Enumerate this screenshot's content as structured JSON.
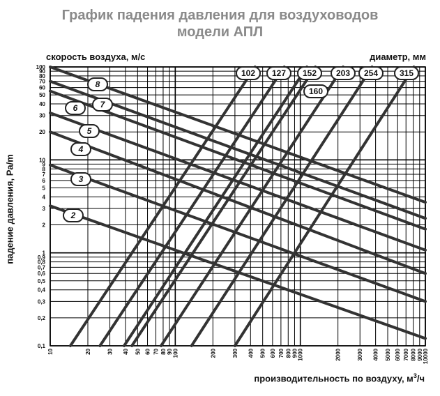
{
  "chart_data": {
    "type": "line",
    "title_lines": [
      "График падения давления для воздуховодов",
      "модели АПЛ"
    ],
    "xlabel": "производительность по воздуху, м",
    "xlabel_sup": "3",
    "xlabel_tail": "/ч",
    "ylabel": "падение давления, Pa/m",
    "speed_axis_label": "скорость воздуха, м/с",
    "diameter_axis_label": "диаметр, мм",
    "xscale": "log",
    "yscale": "log",
    "xlim": [
      10,
      10000
    ],
    "ylim": [
      0.1,
      100
    ],
    "grid": true,
    "x_ticks": [
      {
        "v": 10,
        "t": "10"
      },
      {
        "v": 20,
        "t": "20"
      },
      {
        "v": 30,
        "t": "30"
      },
      {
        "v": 40,
        "t": "40"
      },
      {
        "v": 50,
        "t": "50"
      },
      {
        "v": 60,
        "t": "60"
      },
      {
        "v": 70,
        "t": "70"
      },
      {
        "v": 80,
        "t": "80"
      },
      {
        "v": 90,
        "t": "90"
      },
      {
        "v": 100,
        "t": "100"
      },
      {
        "v": 200,
        "t": "200"
      },
      {
        "v": 300,
        "t": "300"
      },
      {
        "v": 400,
        "t": "400"
      },
      {
        "v": 500,
        "t": "500"
      },
      {
        "v": 600,
        "t": "600"
      },
      {
        "v": 700,
        "t": "700"
      },
      {
        "v": 800,
        "t": "800"
      },
      {
        "v": 900,
        "t": "900"
      },
      {
        "v": 1000,
        "t": "1000"
      },
      {
        "v": 2000,
        "t": "2000"
      },
      {
        "v": 3000,
        "t": "3000"
      },
      {
        "v": 4000,
        "t": "4000"
      },
      {
        "v": 5000,
        "t": "5000"
      },
      {
        "v": 6000,
        "t": "6000"
      },
      {
        "v": 7000,
        "t": "7000"
      },
      {
        "v": 8000,
        "t": "8000"
      },
      {
        "v": 9000,
        "t": "9000"
      },
      {
        "v": 10000,
        "t": "10000"
      }
    ],
    "y_ticks": [
      {
        "v": 0.1,
        "t": "0,1"
      },
      {
        "v": 0.2,
        "t": "0,2"
      },
      {
        "v": 0.3,
        "t": "0,3"
      },
      {
        "v": 0.4,
        "t": "0,4"
      },
      {
        "v": 0.5,
        "t": "0,5"
      },
      {
        "v": 0.6,
        "t": "0,6"
      },
      {
        "v": 0.7,
        "t": "0,7"
      },
      {
        "v": 0.8,
        "t": "0,8"
      },
      {
        "v": 0.9,
        "t": "0,9"
      },
      {
        "v": 1,
        "t": "1"
      },
      {
        "v": 2,
        "t": "2"
      },
      {
        "v": 3,
        "t": "3"
      },
      {
        "v": 4,
        "t": "4"
      },
      {
        "v": 5,
        "t": "5"
      },
      {
        "v": 6,
        "t": "6"
      },
      {
        "v": 7,
        "t": "7"
      },
      {
        "v": 8,
        "t": "8"
      },
      {
        "v": 9,
        "t": "9"
      },
      {
        "v": 10,
        "t": "10"
      },
      {
        "v": 20,
        "t": "20"
      },
      {
        "v": 30,
        "t": "30"
      },
      {
        "v": 40,
        "t": "40"
      },
      {
        "v": 50,
        "t": "50"
      },
      {
        "v": 60,
        "t": "60"
      },
      {
        "v": 70,
        "t": "70"
      },
      {
        "v": 80,
        "t": "80"
      },
      {
        "v": 90,
        "t": "90"
      },
      {
        "v": 100,
        "t": "100"
      }
    ],
    "diameter_lines": [
      {
        "label": "102",
        "points": [
          [
            14.5,
            0.1
          ],
          [
            435,
            100
          ]
        ]
      },
      {
        "label": "127",
        "points": [
          [
            25,
            0.1
          ],
          [
            745,
            100
          ]
        ]
      },
      {
        "label": "152",
        "points": [
          [
            39,
            0.1
          ],
          [
            1130,
            100
          ]
        ]
      },
      {
        "label": "160",
        "points": [
          [
            45,
            0.1
          ],
          [
            1320,
            100
          ]
        ]
      },
      {
        "label": "203",
        "points": [
          [
            77,
            0.1
          ],
          [
            2200,
            100
          ]
        ]
      },
      {
        "label": "254",
        "points": [
          [
            135,
            0.1
          ],
          [
            3750,
            100
          ]
        ]
      },
      {
        "label": "315",
        "points": [
          [
            300,
            0.1
          ],
          [
            8100,
            100
          ]
        ]
      }
    ],
    "speed_lines": [
      {
        "label": "2",
        "points": [
          [
            10,
            3.2
          ],
          [
            10000,
            0.12
          ]
        ]
      },
      {
        "label": "3",
        "points": [
          [
            10,
            8.8
          ],
          [
            10000,
            0.3
          ]
        ]
      },
      {
        "label": "4",
        "points": [
          [
            10,
            20
          ],
          [
            10000,
            0.6
          ]
        ]
      },
      {
        "label": "5",
        "points": [
          [
            10,
            32
          ],
          [
            10000,
            1.07
          ]
        ]
      },
      {
        "label": "6",
        "points": [
          [
            10,
            55
          ],
          [
            10000,
            1.8
          ]
        ]
      },
      {
        "label": "7",
        "points": [
          [
            10,
            70
          ],
          [
            10000,
            2.35
          ]
        ]
      },
      {
        "label": "8",
        "points": [
          [
            10,
            100
          ],
          [
            10000,
            3.5
          ]
        ]
      }
    ],
    "diameter_badges": [
      "102",
      "127",
      "152",
      "203",
      "254",
      "315",
      "160"
    ],
    "speed_badges": [
      "8",
      "7",
      "6",
      "5",
      "4",
      "3",
      "2"
    ]
  }
}
